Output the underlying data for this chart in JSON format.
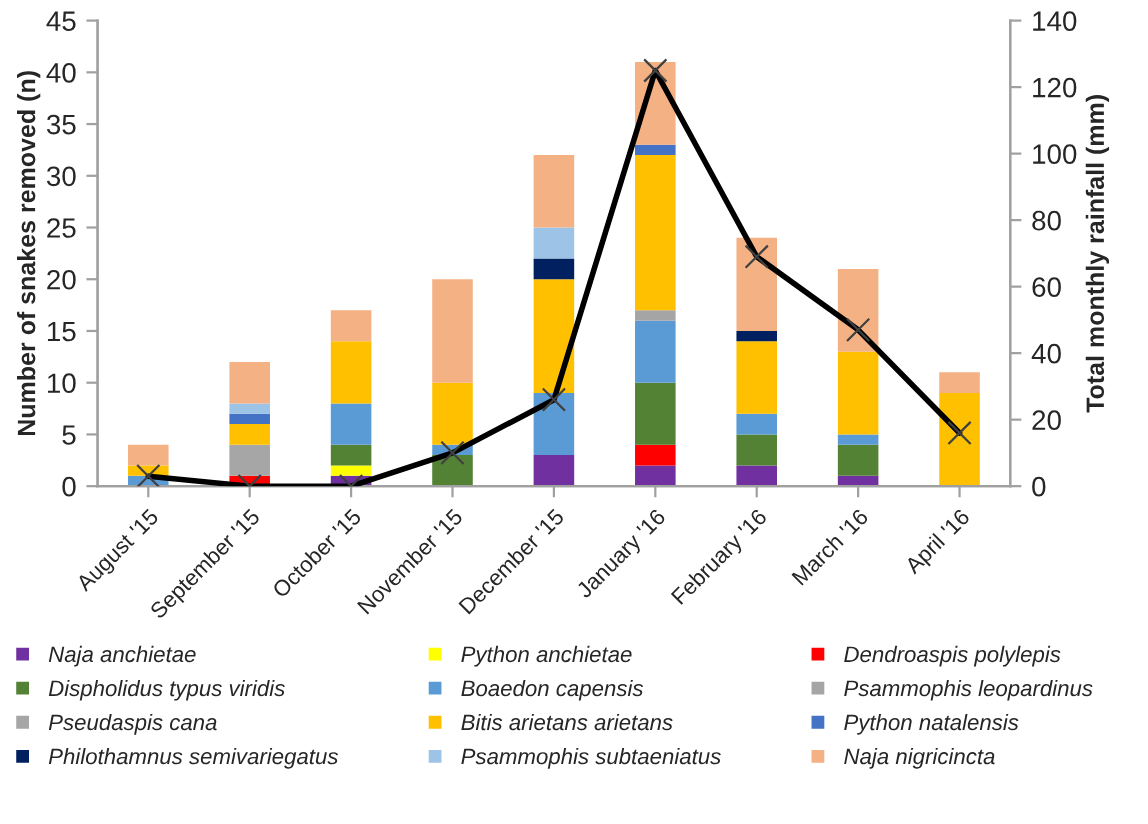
{
  "chart_data": {
    "type": "bar",
    "stacked": true,
    "categories": [
      "August '15",
      "September '15",
      "October '15",
      "November '15",
      "December '15",
      "January '16",
      "February '16",
      "March '16",
      "April '16"
    ],
    "ylabel": "Number of snakes removed (n)",
    "y2label": "Total monthly rainfall (mm)",
    "ylim": [
      0,
      45
    ],
    "yticks": [
      0,
      5,
      10,
      15,
      20,
      25,
      30,
      35,
      40,
      45
    ],
    "y2lim": [
      0,
      140
    ],
    "y2ticks": [
      0,
      20,
      40,
      60,
      80,
      100,
      120,
      140
    ],
    "grid": false,
    "legend": "bottom",
    "series": [
      {
        "name": "Naja anchietae",
        "color": "#7030a0",
        "values": [
          0,
          0,
          1,
          0,
          3,
          2,
          2,
          1,
          0
        ]
      },
      {
        "name": "Python anchietae",
        "color": "#ffff00",
        "values": [
          0,
          0,
          1,
          0,
          0,
          0,
          0,
          0,
          0
        ]
      },
      {
        "name": "Dendroaspis polylepis",
        "color": "#ff0000",
        "values": [
          0,
          1,
          0,
          0,
          0,
          2,
          0,
          0,
          0
        ]
      },
      {
        "name": "Dispholidus typus viridis",
        "color": "#548235",
        "values": [
          0,
          0,
          2,
          3,
          0,
          6,
          3,
          3,
          0
        ]
      },
      {
        "name": "Boaedon capensis",
        "color": "#5b9bd5",
        "values": [
          1,
          0,
          4,
          1,
          6,
          6,
          2,
          1,
          0
        ]
      },
      {
        "name": "Psammophis leopardinus",
        "color": "#a5a5a5",
        "values": [
          0,
          0,
          0,
          0,
          0,
          1,
          0,
          0,
          0
        ]
      },
      {
        "name": "Pseudaspis cana",
        "color": "#a6a6a6",
        "values": [
          0,
          3,
          0,
          0,
          0,
          0,
          0,
          0,
          0
        ]
      },
      {
        "name": "Bitis arietans arietans",
        "color": "#ffc000",
        "values": [
          1,
          2,
          6,
          6,
          11,
          15,
          7,
          8,
          9
        ]
      },
      {
        "name": "Python natalensis",
        "color": "#4472c4",
        "values": [
          0,
          1,
          0,
          0,
          0,
          1,
          0,
          0,
          0
        ]
      },
      {
        "name": "Philothamnus semivariegatus",
        "color": "#002060",
        "values": [
          0,
          0,
          0,
          0,
          2,
          0,
          1,
          0,
          0
        ]
      },
      {
        "name": "Psammophis subtaeniatus",
        "color": "#9dc3e6",
        "values": [
          0,
          1,
          0,
          0,
          3,
          0,
          0,
          0,
          0
        ]
      },
      {
        "name": "Naja nigricincta",
        "color": "#f4b183",
        "values": [
          2,
          4,
          3,
          10,
          7,
          8,
          9,
          8,
          2
        ]
      },
      {
        "type": "line",
        "axis": "y2",
        "color": "#000000",
        "marker": "cross",
        "line_style": "solid",
        "values": [
          3,
          0,
          0,
          10,
          26,
          125,
          69,
          47,
          16
        ]
      }
    ]
  }
}
